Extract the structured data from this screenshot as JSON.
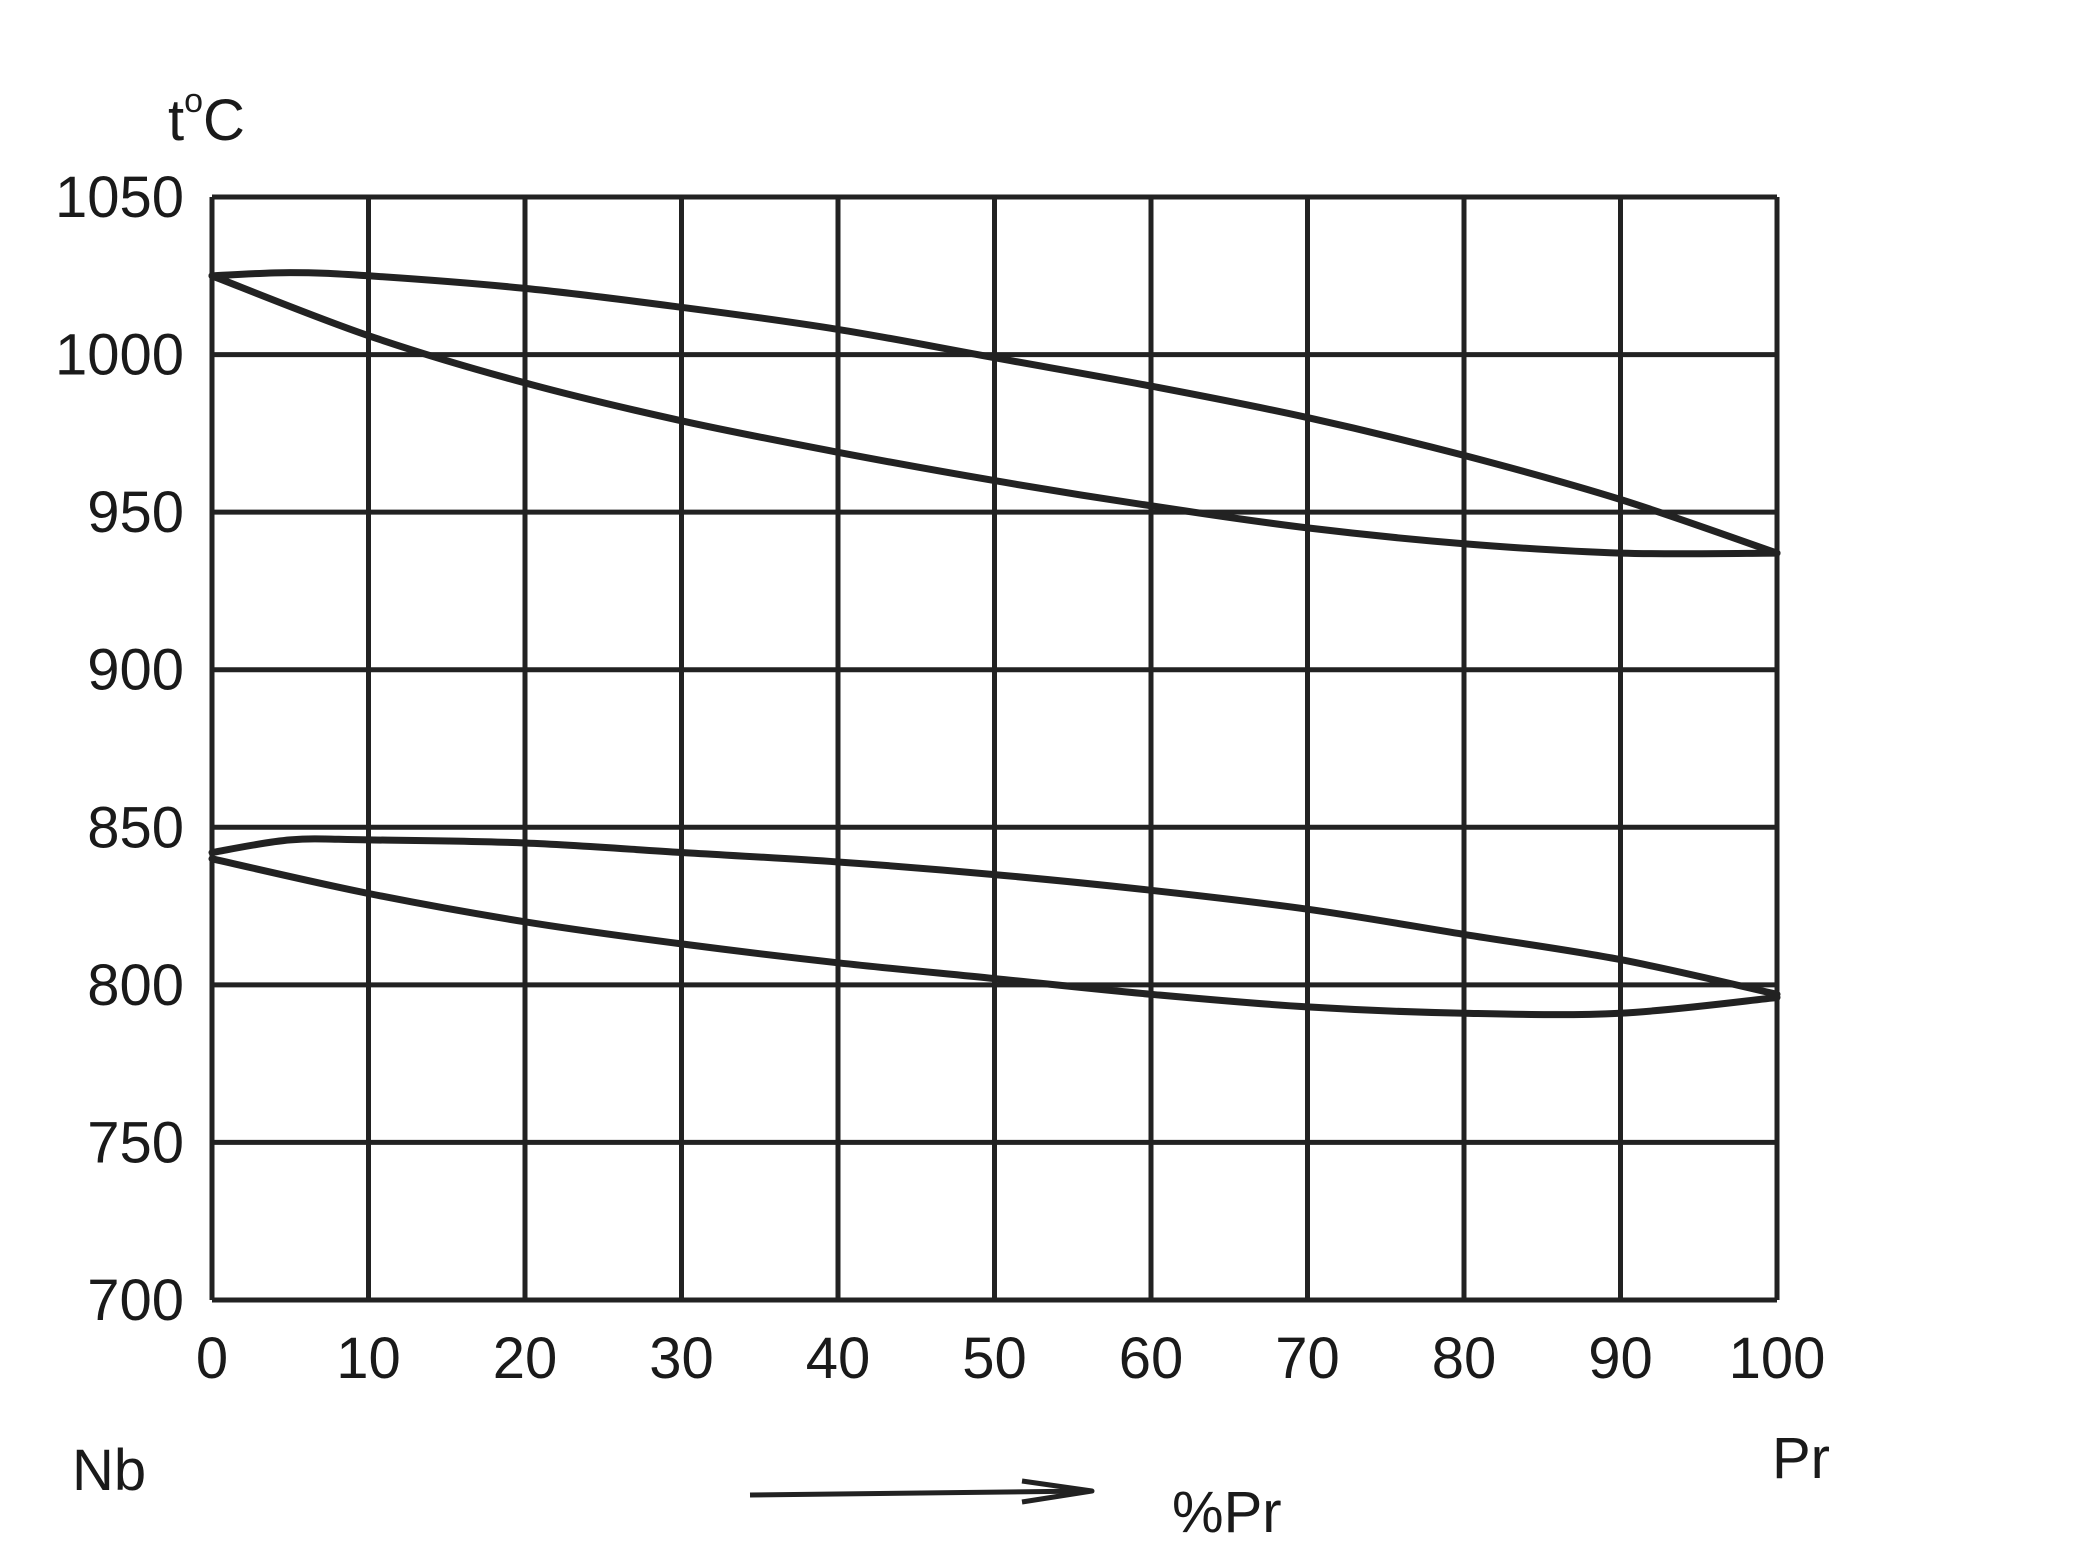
{
  "chart_data": {
    "type": "line",
    "ylabel": "t°C",
    "ylabel_main": "t",
    "ylabel_degree": "o",
    "ylabel_unit": "C",
    "xlabel": "%Pr",
    "x_left_label": "Nb",
    "x_right_label": "Pr",
    "xlim": [
      0,
      100
    ],
    "ylim": [
      700,
      1050
    ],
    "x_ticks": [
      "0",
      "10",
      "20",
      "30",
      "40",
      "50",
      "60",
      "70",
      "80",
      "90",
      "100"
    ],
    "y_ticks": [
      "1050",
      "1000",
      "950",
      "900",
      "850",
      "800",
      "750",
      "700"
    ],
    "grid": true,
    "series": [
      {
        "x": [
          0,
          5,
          10,
          20,
          30,
          40,
          50,
          60,
          70,
          80,
          90,
          100
        ],
        "y": [
          1025,
          1026,
          1025,
          1021,
          1015,
          1008,
          999,
          990,
          980,
          968,
          954,
          937
        ]
      },
      {
        "x": [
          0,
          10,
          20,
          30,
          40,
          50,
          60,
          70,
          80,
          90,
          100
        ],
        "y": [
          1025,
          1006,
          991,
          979,
          969,
          960,
          952,
          945,
          940,
          937,
          937
        ]
      },
      {
        "x": [
          0,
          5,
          10,
          20,
          30,
          40,
          50,
          60,
          70,
          80,
          90,
          100
        ],
        "y": [
          842,
          846,
          846,
          845,
          842,
          839,
          835,
          830,
          824,
          816,
          808,
          797
        ]
      },
      {
        "x": [
          0,
          10,
          20,
          30,
          40,
          50,
          60,
          70,
          80,
          90,
          100
        ],
        "y": [
          840,
          829,
          820,
          813,
          807,
          802,
          797,
          793,
          791,
          791,
          796
        ]
      }
    ]
  }
}
